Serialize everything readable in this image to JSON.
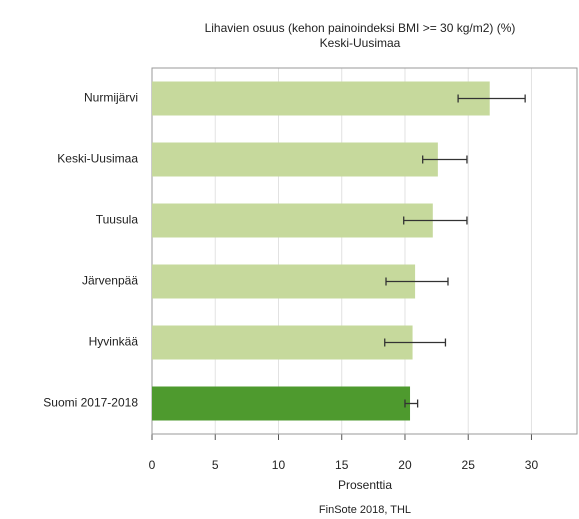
{
  "chart_data": {
    "type": "bar",
    "orientation": "horizontal",
    "title": "Lihavien osuus (kehon painoindeksi BMI >= 30 kg/m2) (%)",
    "subtitle": "Keski-Uusimaa",
    "categories": [
      "Nurmijärvi",
      "Keski-Uusimaa",
      "Tuusula",
      "Järvenpää",
      "Hyvinkää",
      "Suomi 2017-2018"
    ],
    "values": [
      26.7,
      22.6,
      22.2,
      20.8,
      20.6,
      20.4
    ],
    "lower": [
      24.2,
      21.4,
      19.9,
      18.5,
      18.4,
      20.0
    ],
    "upper": [
      29.5,
      24.9,
      24.9,
      23.4,
      23.2,
      21.0
    ],
    "colors": [
      "#c6d99c",
      "#c6d99c",
      "#c6d99c",
      "#c6d99c",
      "#c6d99c",
      "#4e9a2e"
    ],
    "xlim": [
      0,
      33.6
    ],
    "xticks": [
      0,
      5,
      10,
      15,
      20,
      25,
      30
    ],
    "grid": true,
    "xlabel": "Prosenttia",
    "source": "FinSote 2018, THL"
  }
}
